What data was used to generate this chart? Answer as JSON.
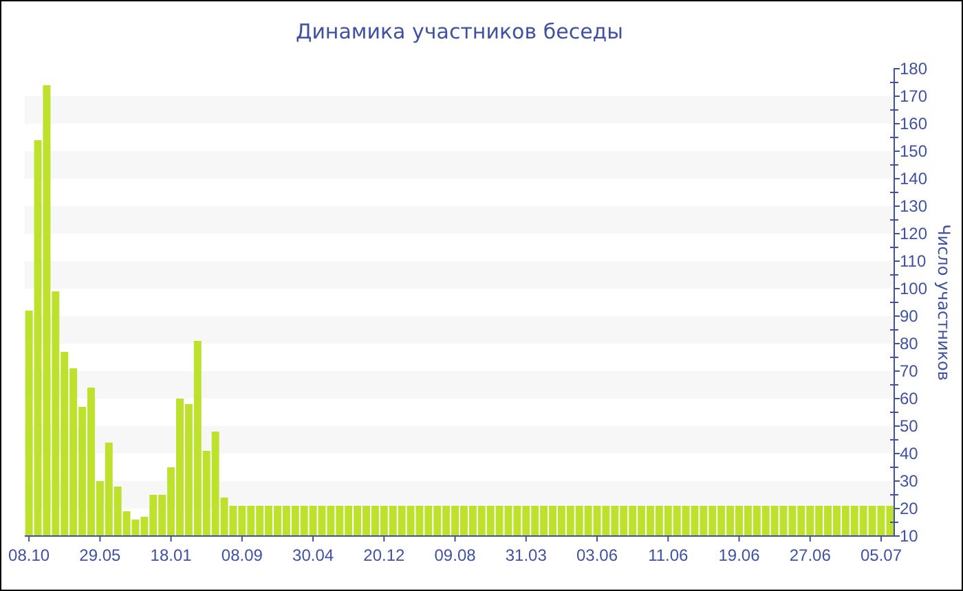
{
  "chart_data": {
    "type": "bar",
    "title": "Динамика участников беседы",
    "ylabel": "Число участников",
    "categories": [
      "08.10",
      null,
      null,
      null,
      null,
      null,
      null,
      null,
      "29.05",
      null,
      null,
      null,
      null,
      null,
      null,
      null,
      "18.01",
      null,
      null,
      null,
      null,
      null,
      null,
      null,
      "08.09",
      null,
      null,
      null,
      null,
      null,
      null,
      null,
      "30.04",
      null,
      null,
      null,
      null,
      null,
      null,
      null,
      "20.12",
      null,
      null,
      null,
      null,
      null,
      null,
      null,
      "09.08",
      null,
      null,
      null,
      null,
      null,
      null,
      null,
      "31.03",
      null,
      null,
      null,
      null,
      null,
      null,
      null,
      "03.06",
      null,
      null,
      null,
      null,
      null,
      null,
      null,
      "11.06",
      null,
      null,
      null,
      null,
      null,
      null,
      null,
      "19.06",
      null,
      null,
      null,
      null,
      null,
      null,
      null,
      "27.06",
      null,
      null,
      null,
      null,
      null,
      null,
      null,
      "05.07",
      null
    ],
    "values": [
      92,
      154,
      174,
      99,
      77,
      71,
      57,
      64,
      30,
      44,
      28,
      19,
      16,
      17,
      25,
      25,
      35,
      60,
      58,
      81,
      41,
      48,
      24,
      21,
      21,
      21,
      21,
      21,
      21,
      21,
      21,
      21,
      21,
      21,
      21,
      21,
      21,
      21,
      21,
      21,
      21,
      21,
      21,
      21,
      21,
      21,
      21,
      21,
      21,
      21,
      21,
      21,
      21,
      21,
      21,
      21,
      21,
      21,
      21,
      21,
      21,
      21,
      21,
      21,
      21,
      21,
      21,
      21,
      21,
      21,
      21,
      21,
      21,
      21,
      21,
      21,
      21,
      21,
      21,
      21,
      21,
      21,
      21,
      21,
      21,
      21,
      21,
      21,
      21,
      21,
      21,
      21,
      21,
      21,
      21,
      21,
      21,
      21
    ],
    "color": "#bde12d",
    "ylim": [
      10,
      180
    ],
    "yticks": [
      10,
      20,
      30,
      40,
      50,
      60,
      70,
      80,
      90,
      100,
      110,
      120,
      130,
      140,
      150,
      160,
      170,
      180
    ],
    "bands": [
      {
        "axis": "y",
        "from": 20,
        "to": 30,
        "color": "#f7f7f7"
      },
      {
        "axis": "y",
        "from": 40,
        "to": 50,
        "color": "#f7f7f7"
      },
      {
        "axis": "y",
        "from": 60,
        "to": 70,
        "color": "#f7f7f7"
      },
      {
        "axis": "y",
        "from": 80,
        "to": 90,
        "color": "#f7f7f7"
      },
      {
        "axis": "y",
        "from": 100,
        "to": 110,
        "color": "#f7f7f7"
      },
      {
        "axis": "y",
        "from": 120,
        "to": 130,
        "color": "#f7f7f7"
      },
      {
        "axis": "y",
        "from": 140,
        "to": 150,
        "color": "#f7f7f7"
      },
      {
        "axis": "y",
        "from": 160,
        "to": 170,
        "color": "#f7f7f7"
      }
    ]
  }
}
